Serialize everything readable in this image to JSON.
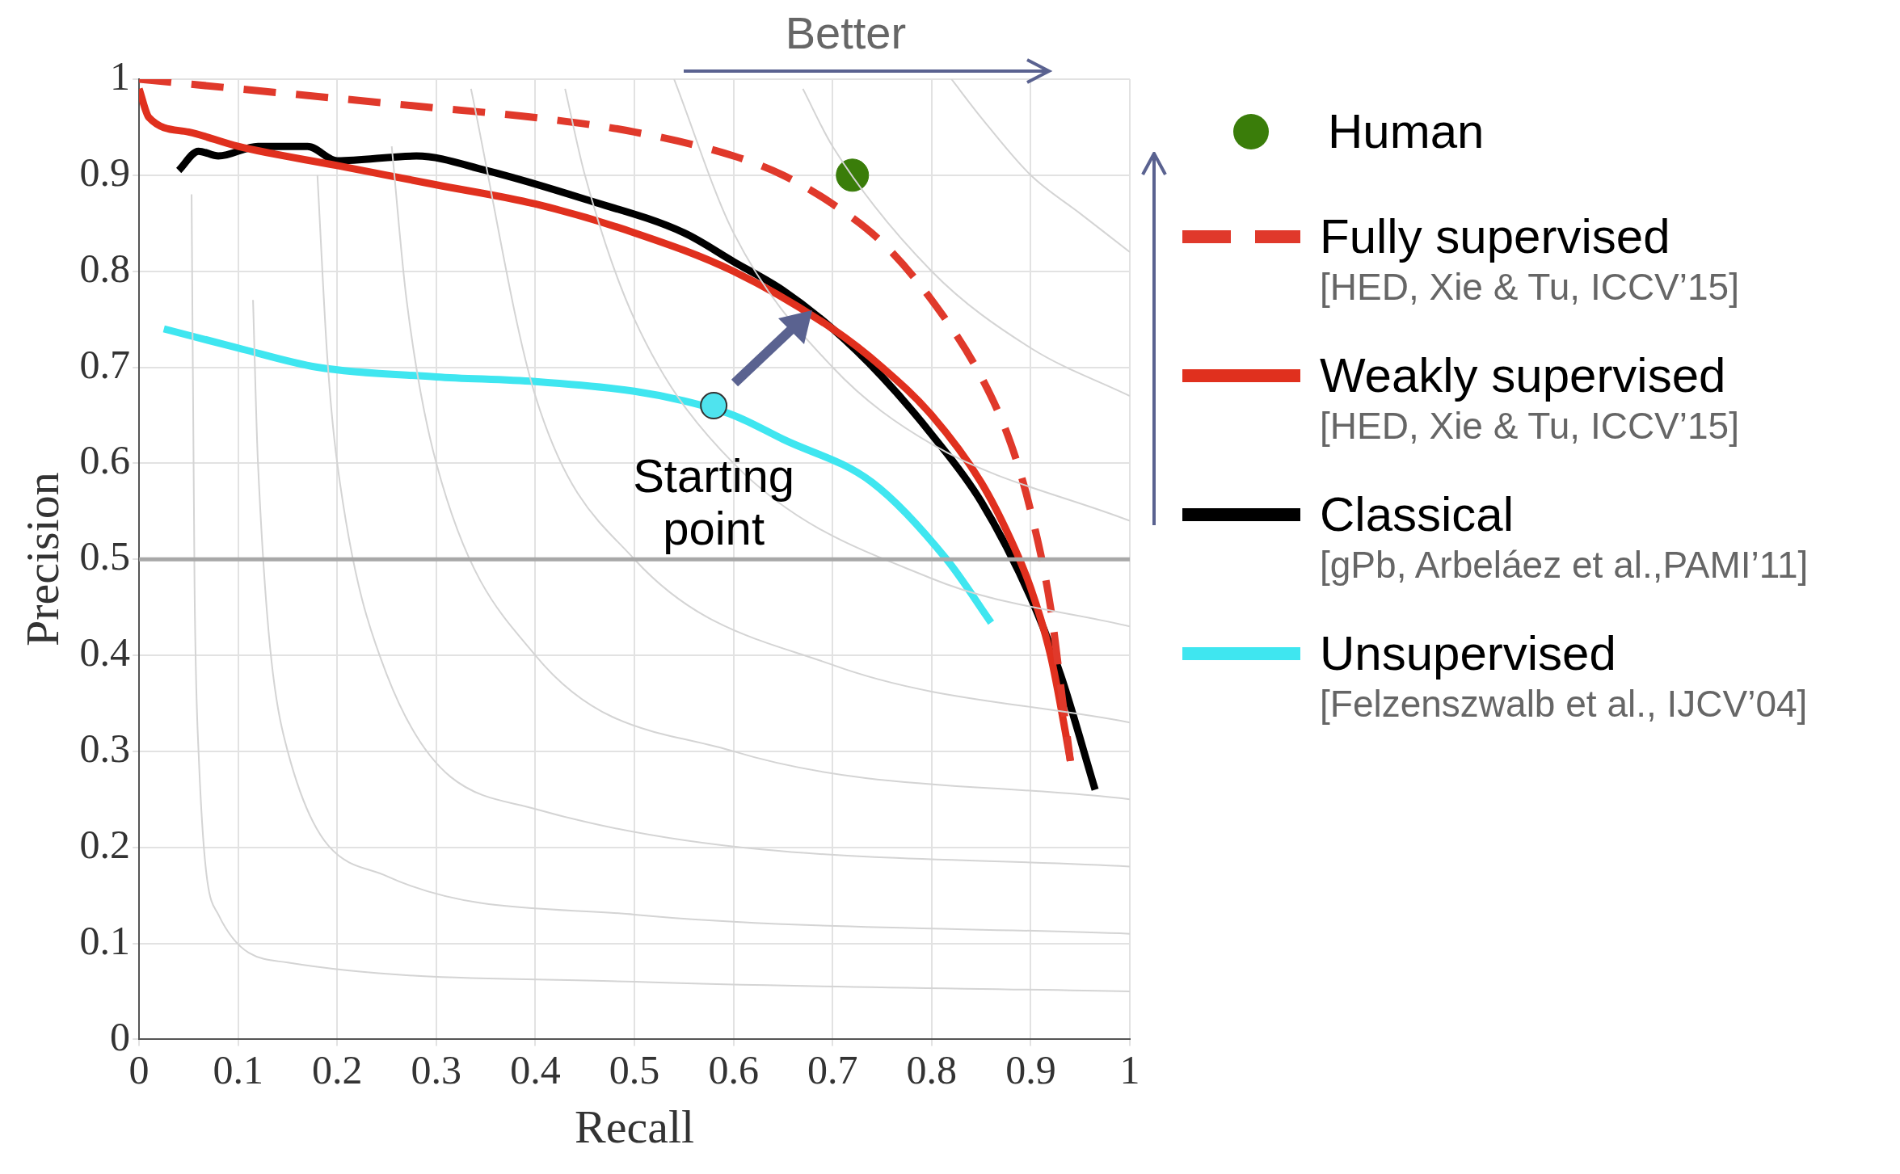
{
  "chart_data": {
    "type": "line",
    "xlabel": "Recall",
    "ylabel": "Precision",
    "xlim": [
      0,
      1
    ],
    "ylim": [
      0,
      1
    ],
    "xticks": [
      0,
      0.1,
      0.2,
      0.3,
      0.4,
      0.5,
      0.6,
      0.7,
      0.8,
      0.9,
      1
    ],
    "yticks": [
      0,
      0.1,
      0.2,
      0.3,
      0.4,
      0.5,
      0.6,
      0.7,
      0.8,
      0.9,
      1
    ],
    "grid": true,
    "legend": "right",
    "ref_lines": [
      {
        "axis": "y",
        "value": 0.5,
        "color": "#a8a8a8"
      }
    ],
    "annotations": [
      "Better",
      {
        "text": "Starting point",
        "x": 0.58,
        "y": 0.66
      },
      "[HED, Xie & Tu, ICCV’15]",
      "[HED, Xie & Tu, ICCV’15]",
      "[gPb, Arbeláez et al.,PAMI’11]",
      "[Felzenszwalb et al., IJCV’04]"
    ],
    "series": [
      {
        "color": "#d4d4d4",
        "x": [
          0.053,
          0.056,
          0.06,
          0.08,
          0.15,
          0.5,
          1
        ],
        "values": [
          0.88,
          0.47,
          0.3,
          0.13,
          0.08,
          0.06,
          0.05
        ]
      },
      {
        "color": "#d4d4d4",
        "x": [
          0.115,
          0.12,
          0.15,
          0.25,
          0.5,
          1
        ],
        "values": [
          0.77,
          0.6,
          0.3,
          0.17,
          0.13,
          0.11
        ]
      },
      {
        "color": "#d4d4d4",
        "x": [
          0.18,
          0.19,
          0.2,
          0.25,
          0.4,
          1
        ],
        "values": [
          0.9,
          0.71,
          0.6,
          0.38,
          0.24,
          0.18
        ]
      },
      {
        "color": "#d4d4d4",
        "x": [
          0.255,
          0.27,
          0.3,
          0.4,
          0.6,
          1
        ],
        "values": [
          0.93,
          0.77,
          0.6,
          0.4,
          0.3,
          0.25
        ]
      },
      {
        "color": "#d4d4d4",
        "x": [
          0.335,
          0.4,
          0.5,
          0.7,
          1
        ],
        "values": [
          0.99,
          0.67,
          0.5,
          0.39,
          0.33
        ]
      },
      {
        "color": "#d4d4d4",
        "x": [
          0.43,
          0.45,
          0.5,
          0.6,
          0.8,
          1
        ],
        "values": [
          0.99,
          0.9,
          0.75,
          0.6,
          0.48,
          0.43
        ]
      },
      {
        "color": "#d4d4d4",
        "x": [
          0.54,
          0.6,
          0.7,
          0.8,
          1
        ],
        "values": [
          1,
          0.84,
          0.7,
          0.62,
          0.54
        ]
      },
      {
        "color": "#d4d4d4",
        "x": [
          0.67,
          0.7,
          0.8,
          0.9,
          1
        ],
        "values": [
          0.99,
          0.93,
          0.8,
          0.72,
          0.67
        ]
      },
      {
        "color": "#d4d4d4",
        "x": [
          0.82,
          0.85,
          0.9,
          0.95,
          1
        ],
        "values": [
          1,
          0.96,
          0.9,
          0.86,
          0.82
        ]
      },
      {
        "name": "Human",
        "type": "scatter",
        "color": "#3a7d0a",
        "x": [
          0.72
        ],
        "values": [
          0.9
        ]
      },
      {
        "name": "Fully supervised",
        "color": "#e0392b",
        "line_style": "dashed",
        "x": [
          0,
          0.1,
          0.2,
          0.3,
          0.4,
          0.5,
          0.6,
          0.65,
          0.7,
          0.75,
          0.8,
          0.85,
          0.88,
          0.9,
          0.92,
          0.93,
          0.94
        ],
        "values": [
          1,
          0.99,
          0.98,
          0.97,
          0.96,
          0.945,
          0.92,
          0.9,
          0.87,
          0.83,
          0.77,
          0.69,
          0.62,
          0.55,
          0.45,
          0.37,
          0.29
        ]
      },
      {
        "name": "Weakly supervised",
        "color": "#e0301e",
        "x": [
          0,
          0.01,
          0.05,
          0.1,
          0.2,
          0.3,
          0.4,
          0.5,
          0.6,
          0.7,
          0.75,
          0.8,
          0.85,
          0.88,
          0.9,
          0.92,
          0.935,
          0.94
        ],
        "values": [
          0.99,
          0.96,
          0.945,
          0.93,
          0.91,
          0.89,
          0.87,
          0.84,
          0.8,
          0.74,
          0.7,
          0.65,
          0.58,
          0.52,
          0.47,
          0.4,
          0.32,
          0.29
        ]
      },
      {
        "name": "Classical",
        "color": "#000000",
        "x": [
          0.04,
          0.06,
          0.08,
          0.12,
          0.17,
          0.2,
          0.28,
          0.35,
          0.45,
          0.55,
          0.6,
          0.65,
          0.7,
          0.75,
          0.8,
          0.85,
          0.9,
          0.93,
          0.965
        ],
        "values": [
          0.905,
          0.925,
          0.92,
          0.93,
          0.93,
          0.915,
          0.92,
          0.905,
          0.875,
          0.84,
          0.81,
          0.78,
          0.74,
          0.69,
          0.63,
          0.56,
          0.46,
          0.38,
          0.26
        ]
      },
      {
        "name": "Unsupervised",
        "color": "#3fe6f0",
        "x": [
          0.025,
          0.1,
          0.18,
          0.3,
          0.4,
          0.5,
          0.55,
          0.6,
          0.65,
          0.74,
          0.815,
          0.86
        ],
        "values": [
          0.74,
          0.72,
          0.7,
          0.69,
          0.685,
          0.675,
          0.665,
          0.65,
          0.625,
          0.58,
          0.5,
          0.434
        ]
      }
    ]
  }
}
